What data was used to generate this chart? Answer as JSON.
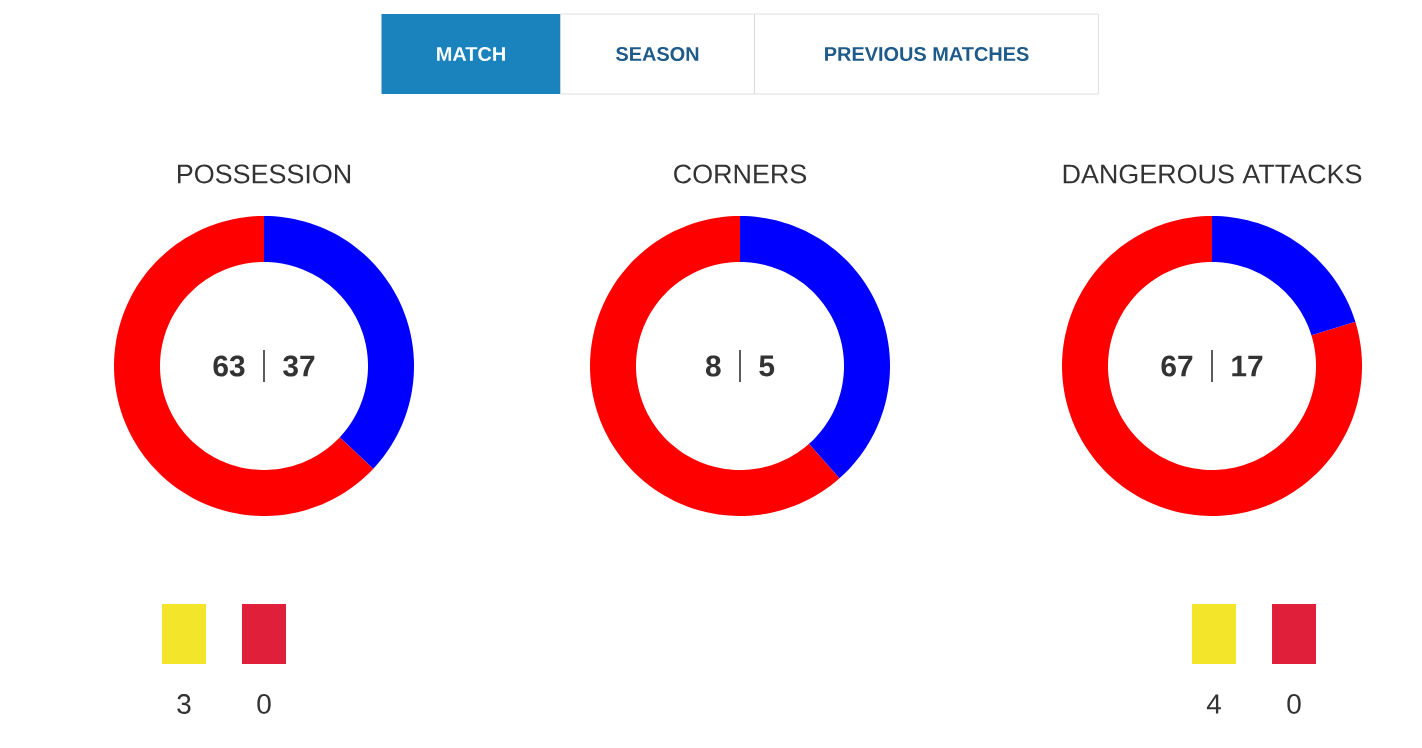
{
  "chart_data": [
    {
      "type": "other",
      "annotations": [
        "MATCH",
        "SEASON",
        "PREVIOUS MATCHES"
      ]
    },
    {
      "type": "donut",
      "title": "POSSESSION",
      "categories": [
        null,
        null
      ],
      "values": [
        63,
        37
      ],
      "colors": [
        "#ff0000",
        "#0000ff"
      ],
      "data_labels": true
    },
    {
      "type": "donut",
      "title": "CORNERS",
      "categories": [
        null,
        null
      ],
      "values": [
        8,
        5
      ],
      "colors": [
        "#ff0000",
        "#0000ff"
      ],
      "data_labels": true
    },
    {
      "type": "donut",
      "title": "DANGEROUS ATTACKS",
      "categories": [
        null,
        null
      ],
      "values": [
        67,
        17
      ],
      "colors": [
        "#ff0000",
        "#0000ff"
      ],
      "data_labels": true
    },
    {
      "type": "other",
      "categories": [
        null,
        null
      ],
      "values": [
        3,
        0
      ],
      "colors": [
        "#f2e52a",
        "#e0203a"
      ],
      "data_labels": true
    },
    {
      "type": "other",
      "categories": [
        null,
        null
      ],
      "values": [
        4,
        0
      ],
      "colors": [
        "#f2e52a",
        "#e0203a"
      ],
      "data_labels": true
    }
  ]
}
